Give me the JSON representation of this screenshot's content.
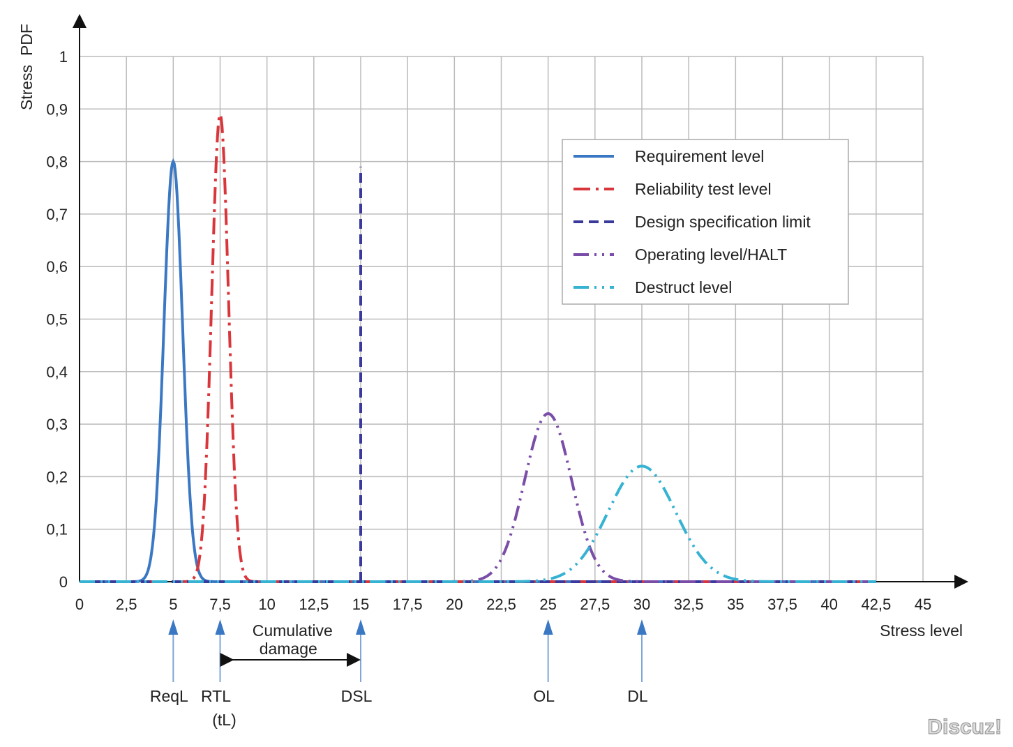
{
  "chart_data": {
    "type": "line",
    "xlabel": "Stress level",
    "ylabel": "Stress  PDF",
    "xlim": [
      0,
      45
    ],
    "ylim": [
      0,
      1
    ],
    "grid": true,
    "legend_position": "top-right",
    "x_ticks": [
      "0",
      "2,5",
      "5",
      "7,5",
      "10",
      "12,5",
      "15",
      "17,5",
      "20",
      "22,5",
      "25",
      "27,5",
      "30",
      "32,5",
      "35",
      "37,5",
      "40",
      "42,5",
      "45"
    ],
    "y_ticks": [
      "0",
      "0,1",
      "0,2",
      "0,3",
      "0,4",
      "0,5",
      "0,6",
      "0,7",
      "0,8",
      "0,9",
      "1"
    ],
    "series": [
      {
        "name": "Requirement level",
        "kind": "normal",
        "mean": 5,
        "sigma": 0.5,
        "peak": 0.8,
        "color": "#3b78c4",
        "dash": "solid"
      },
      {
        "name": "Reliability test level",
        "kind": "normal",
        "mean": 7.5,
        "sigma": 0.45,
        "peak": 0.89,
        "color": "#d9363b",
        "dash": "dash-dot"
      },
      {
        "name": "Design specification limit",
        "kind": "vertical",
        "x": 15,
        "peak": 0.79,
        "color": "#3a3a9c",
        "dash": "dash"
      },
      {
        "name": "Operating level/HALT",
        "kind": "normal",
        "mean": 25,
        "sigma": 1.25,
        "peak": 0.32,
        "color": "#7a4ea8",
        "dash": "dash-dot-dot"
      },
      {
        "name": "Destruct level",
        "kind": "normal",
        "mean": 30,
        "sigma": 1.8,
        "peak": 0.22,
        "color": "#36b2d2",
        "dash": "dash-dot-dot"
      }
    ],
    "x_range_drawn": [
      0,
      42.5
    ],
    "markers": [
      {
        "x": 5,
        "label": "ReqL",
        "sub": ""
      },
      {
        "x": 7.5,
        "label": "RTL",
        "sub": "(tL)"
      },
      {
        "x": 15,
        "label": "DSL",
        "sub": ""
      },
      {
        "x": 25,
        "label": "OL",
        "sub": ""
      },
      {
        "x": 30,
        "label": "DL",
        "sub": ""
      }
    ],
    "annotation": {
      "from": 7.5,
      "to": 15,
      "line1": "Cumulative",
      "line2": "damage"
    },
    "marker_color": "#3b78c4"
  },
  "watermark": "Discuz!"
}
